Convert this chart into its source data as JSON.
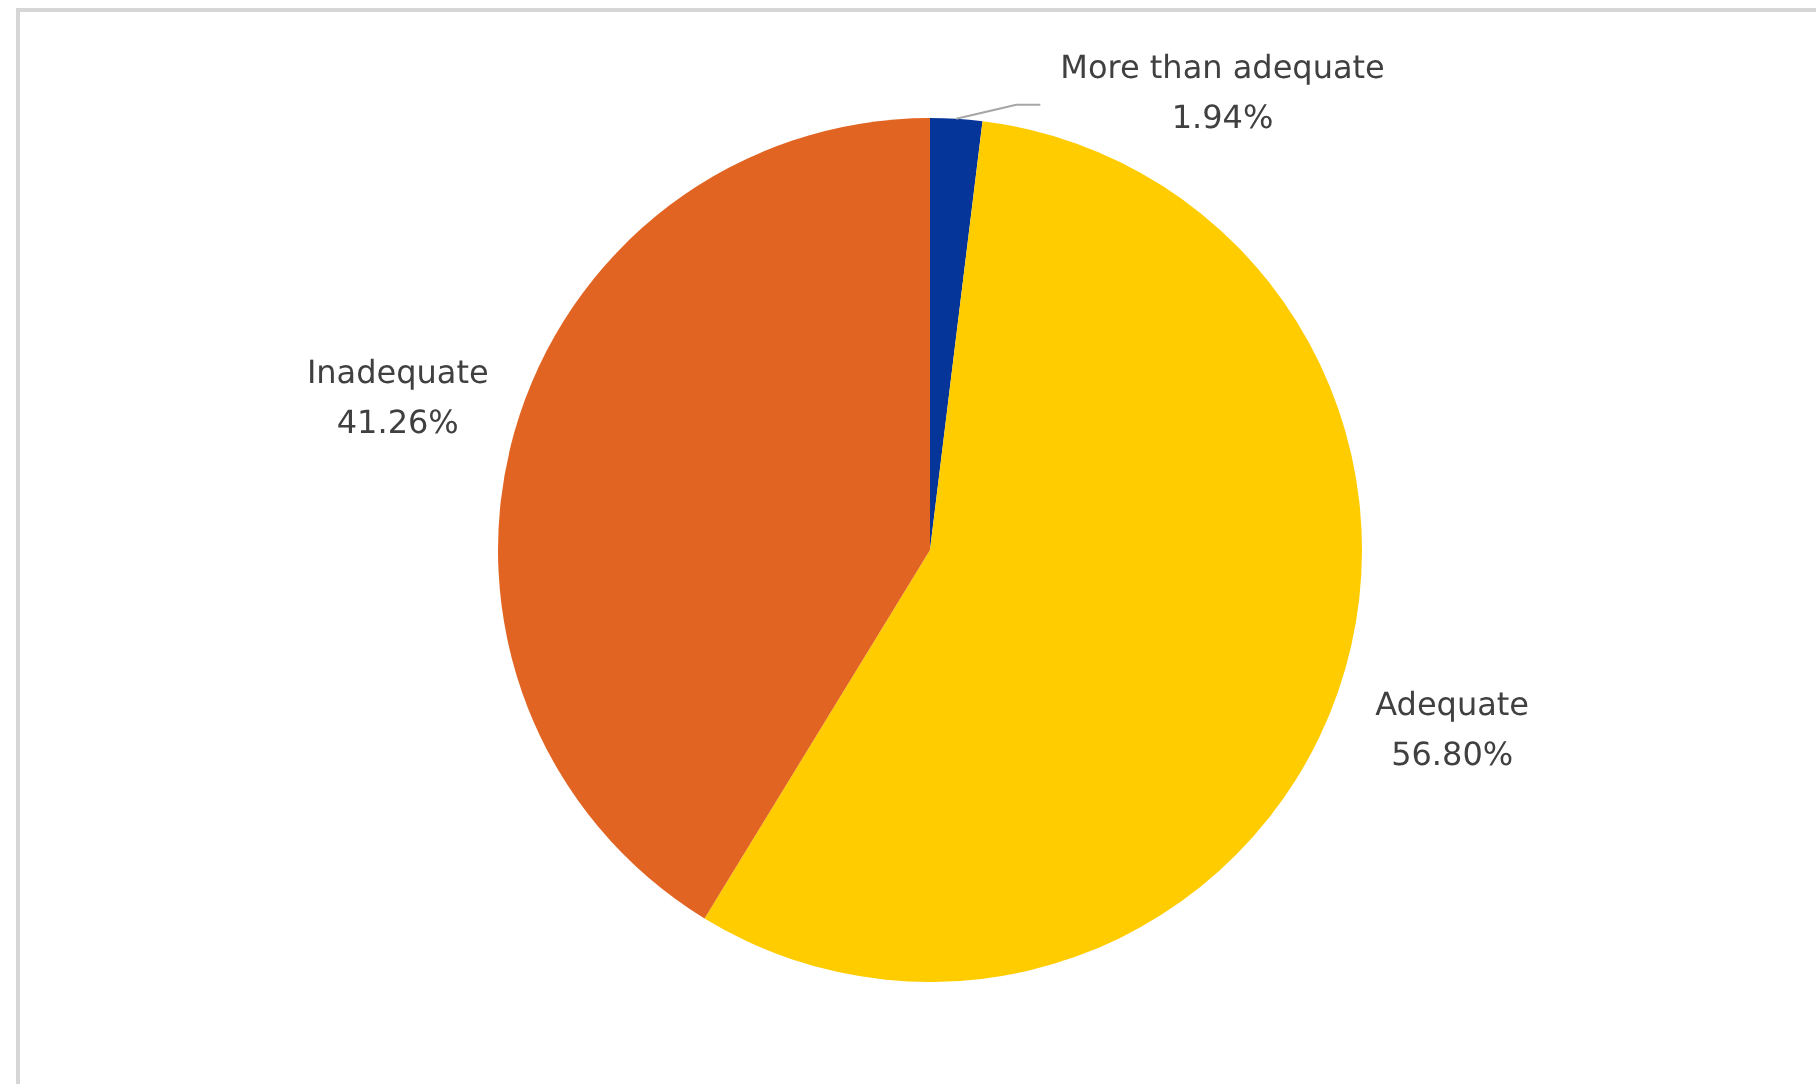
{
  "chart_data": {
    "type": "pie",
    "categories": [
      "More than adequate",
      "Adequate",
      "Inadequate"
    ],
    "values": [
      1.94,
      56.8,
      41.26
    ],
    "colors": [
      "#06359a",
      "#ffcc00",
      "#e26422"
    ],
    "value_labels": [
      "1.94%",
      "56.80%",
      "41.26%"
    ]
  }
}
